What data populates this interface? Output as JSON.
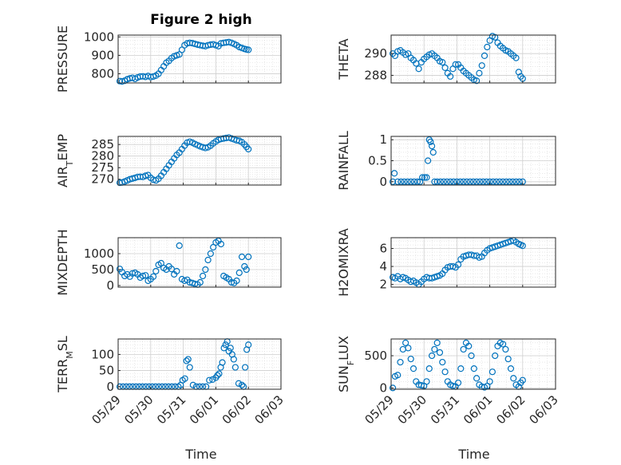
{
  "figure": {
    "title": "Figure 2 high",
    "xlabel_left": "Time",
    "xlabel_right": "Time",
    "x_tick_labels": [
      "05/29",
      "05/30",
      "05/31",
      "06/01",
      "06/02",
      "06/03"
    ],
    "marker_color": "#0072BD",
    "grid_color": "#d9d9d9"
  },
  "chart_data": [
    {
      "type": "scatter",
      "ylabel": "PRESSURE",
      "ylim": [
        750,
        1010
      ],
      "yticks": [
        800,
        900,
        1000
      ],
      "ytick_labels": [
        "800",
        "900",
        "1000"
      ],
      "x": [
        0.05,
        0.12,
        0.2,
        0.28,
        0.36,
        0.44,
        0.52,
        0.6,
        0.68,
        0.76,
        0.84,
        0.92,
        1.0,
        1.08,
        1.16,
        1.24,
        1.32,
        1.4,
        1.48,
        1.56,
        1.64,
        1.72,
        1.8,
        1.88,
        1.96,
        2.04,
        2.12,
        2.2,
        2.28,
        2.36,
        2.44,
        2.52,
        2.6,
        2.68,
        2.76,
        2.84,
        2.92,
        3.0,
        3.08,
        3.16,
        3.24,
        3.32,
        3.4,
        3.48,
        3.56,
        3.64,
        3.72,
        3.8,
        3.88,
        3.94,
        4.0
      ],
      "y": [
        760,
        758,
        762,
        770,
        775,
        778,
        772,
        780,
        785,
        786,
        783,
        788,
        782,
        785,
        790,
        800,
        820,
        840,
        860,
        870,
        885,
        895,
        900,
        905,
        930,
        955,
        965,
        968,
        966,
        962,
        958,
        955,
        952,
        950,
        955,
        958,
        960,
        955,
        950,
        965,
        968,
        970,
        972,
        968,
        962,
        955,
        945,
        940,
        935,
        932,
        930
      ]
    },
    {
      "type": "scatter",
      "ylabel": "THETA",
      "ylim": [
        287.3,
        291.7
      ],
      "yticks": [
        288,
        290
      ],
      "ytick_labels": [
        "288",
        "290"
      ],
      "x": [
        0.05,
        0.12,
        0.2,
        0.28,
        0.36,
        0.44,
        0.52,
        0.6,
        0.68,
        0.76,
        0.84,
        0.92,
        1.0,
        1.08,
        1.16,
        1.24,
        1.32,
        1.4,
        1.48,
        1.56,
        1.64,
        1.72,
        1.8,
        1.88,
        1.96,
        2.04,
        2.12,
        2.2,
        2.28,
        2.36,
        2.44,
        2.52,
        2.6,
        2.68,
        2.76,
        2.84,
        2.92,
        3.0,
        3.08,
        3.16,
        3.24,
        3.32,
        3.4,
        3.48,
        3.56,
        3.64,
        3.72,
        3.8,
        3.88,
        3.94,
        4.0
      ],
      "y": [
        290,
        289.8,
        290.2,
        290.3,
        290.1,
        289.9,
        290,
        289.6,
        289.4,
        289.1,
        288.6,
        289.2,
        289.5,
        289.7,
        289.9,
        290,
        289.8,
        289.6,
        289.3,
        289.2,
        288.7,
        288.2,
        287.9,
        288.6,
        289.0,
        289.0,
        288.7,
        288.4,
        288.2,
        288.0,
        287.8,
        287.6,
        287.5,
        288.2,
        288.9,
        289.8,
        290.6,
        291.2,
        291.6,
        291.5,
        291.0,
        290.7,
        290.5,
        290.3,
        290.2,
        290.0,
        289.8,
        289.6,
        288.3,
        287.9,
        287.7
      ]
    },
    {
      "type": "scatter",
      "ylabel": "AIR_TEMP",
      "ylim": [
        267.5,
        288.5
      ],
      "yticks": [
        270,
        275,
        280,
        285
      ],
      "ytick_labels": [
        "270",
        "275",
        "280",
        "285"
      ],
      "x": [
        0.05,
        0.12,
        0.2,
        0.28,
        0.36,
        0.44,
        0.52,
        0.6,
        0.68,
        0.76,
        0.84,
        0.92,
        1.0,
        1.08,
        1.16,
        1.24,
        1.32,
        1.4,
        1.48,
        1.56,
        1.64,
        1.72,
        1.8,
        1.88,
        1.96,
        2.04,
        2.12,
        2.2,
        2.28,
        2.36,
        2.44,
        2.52,
        2.6,
        2.68,
        2.76,
        2.84,
        2.92,
        3.0,
        3.08,
        3.16,
        3.24,
        3.32,
        3.4,
        3.48,
        3.56,
        3.64,
        3.72,
        3.8,
        3.88,
        3.94,
        4.0
      ],
      "y": [
        268.5,
        268.6,
        269,
        269.5,
        270,
        270.3,
        270.6,
        271,
        271.1,
        271,
        271.5,
        271.8,
        270.6,
        269.8,
        269.5,
        270.2,
        271.5,
        273,
        274.5,
        276,
        277.5,
        279,
        280.5,
        281.5,
        283,
        284.5,
        285.8,
        286.2,
        285.8,
        285.2,
        284.7,
        284.2,
        283.8,
        283.5,
        283.8,
        284.5,
        285.5,
        286.3,
        287,
        287.4,
        287.6,
        287.8,
        288,
        287.6,
        287.2,
        286.8,
        286.6,
        286,
        285,
        284,
        283
      ]
    },
    {
      "type": "scatter",
      "ylabel": "RAINFALL",
      "ylim": [
        -0.08,
        1.08
      ],
      "yticks": [
        0,
        0.5,
        1
      ],
      "ytick_labels": [
        "0",
        "0.5",
        "1"
      ],
      "x": [
        0.05,
        0.1,
        0.2,
        0.3,
        0.4,
        0.5,
        0.6,
        0.7,
        0.8,
        0.88,
        0.95,
        1.02,
        1.08,
        1.12,
        1.16,
        1.2,
        1.24,
        1.28,
        1.32,
        1.4,
        1.5,
        1.6,
        1.7,
        1.8,
        1.9,
        2.0,
        2.1,
        2.2,
        2.3,
        2.4,
        2.5,
        2.6,
        2.7,
        2.8,
        2.9,
        3.0,
        3.1,
        3.2,
        3.3,
        3.4,
        3.5,
        3.6,
        3.7,
        3.8,
        3.9,
        4.0
      ],
      "y": [
        0,
        0.2,
        0,
        0,
        0,
        0,
        0,
        0,
        0,
        0,
        0.1,
        0.1,
        0.1,
        0.5,
        1.0,
        0.95,
        0.85,
        0.7,
        0,
        0,
        0,
        0,
        0,
        0,
        0,
        0,
        0,
        0,
        0,
        0,
        0,
        0,
        0,
        0,
        0,
        0,
        0,
        0,
        0,
        0,
        0,
        0,
        0,
        0,
        0,
        0
      ]
    },
    {
      "type": "scatter",
      "ylabel": "MIXDEPTH",
      "ylim": [
        -50,
        1500
      ],
      "yticks": [
        0,
        500,
        1000
      ],
      "ytick_labels": [
        "0",
        "500",
        "1000"
      ],
      "x": [
        0.05,
        0.12,
        0.2,
        0.28,
        0.36,
        0.44,
        0.52,
        0.6,
        0.68,
        0.76,
        0.84,
        0.92,
        1.0,
        1.08,
        1.16,
        1.24,
        1.32,
        1.4,
        1.48,
        1.56,
        1.64,
        1.72,
        1.8,
        1.88,
        1.96,
        2.04,
        2.12,
        2.2,
        2.28,
        2.36,
        2.44,
        2.52,
        2.6,
        2.68,
        2.76,
        2.84,
        2.92,
        3.0,
        3.08,
        3.16,
        3.24,
        3.32,
        3.4,
        3.48,
        3.56,
        3.64,
        3.72,
        3.8,
        3.88,
        3.94,
        4.0
      ],
      "y": [
        520,
        420,
        300,
        350,
        280,
        380,
        400,
        350,
        250,
        300,
        320,
        150,
        200,
        280,
        450,
        650,
        700,
        550,
        500,
        600,
        520,
        350,
        450,
        1250,
        200,
        150,
        180,
        100,
        80,
        50,
        30,
        100,
        300,
        500,
        800,
        1000,
        1200,
        1350,
        1400,
        1300,
        300,
        250,
        200,
        100,
        80,
        150,
        400,
        900,
        600,
        500,
        900
      ]
    },
    {
      "type": "scatter",
      "ylabel": "H2OMIXRA",
      "ylim": [
        1.7,
        7.2
      ],
      "yticks": [
        2,
        4,
        6
      ],
      "ytick_labels": [
        "2",
        "4",
        "6"
      ],
      "x": [
        0.05,
        0.12,
        0.2,
        0.28,
        0.36,
        0.44,
        0.52,
        0.6,
        0.68,
        0.76,
        0.84,
        0.92,
        1.0,
        1.08,
        1.16,
        1.24,
        1.32,
        1.4,
        1.48,
        1.56,
        1.64,
        1.72,
        1.8,
        1.88,
        1.96,
        2.04,
        2.12,
        2.2,
        2.28,
        2.36,
        2.44,
        2.52,
        2.6,
        2.68,
        2.76,
        2.84,
        2.92,
        3.0,
        3.08,
        3.16,
        3.24,
        3.32,
        3.4,
        3.48,
        3.56,
        3.64,
        3.72,
        3.8,
        3.88,
        3.94,
        4.0
      ],
      "y": [
        2.8,
        2.7,
        2.9,
        2.6,
        2.8,
        2.7,
        2.5,
        2.3,
        2.4,
        2.2,
        2.0,
        2.3,
        2.6,
        2.8,
        2.7,
        2.7,
        2.8,
        2.9,
        3.0,
        3.2,
        3.6,
        3.9,
        4.0,
        4.0,
        3.9,
        4.2,
        4.8,
        5.1,
        5.2,
        5.3,
        5.3,
        5.2,
        5.2,
        5.0,
        5.1,
        5.5,
        5.8,
        6.0,
        6.1,
        6.2,
        6.3,
        6.4,
        6.5,
        6.6,
        6.7,
        6.8,
        6.9,
        6.7,
        6.5,
        6.4,
        6.3
      ]
    },
    {
      "type": "scatter",
      "ylabel": "TERR_MSL",
      "ylim": [
        -8,
        148
      ],
      "yticks": [
        0,
        50,
        100
      ],
      "ytick_labels": [
        "0",
        "50",
        "100"
      ],
      "x": [
        0.05,
        0.15,
        0.25,
        0.35,
        0.45,
        0.55,
        0.65,
        0.75,
        0.85,
        0.95,
        1.05,
        1.15,
        1.25,
        1.35,
        1.45,
        1.55,
        1.65,
        1.75,
        1.85,
        1.92,
        1.98,
        2.05,
        2.1,
        2.15,
        2.2,
        2.3,
        2.4,
        2.5,
        2.6,
        2.7,
        2.8,
        2.9,
        3.0,
        3.05,
        3.1,
        3.15,
        3.2,
        3.25,
        3.3,
        3.35,
        3.4,
        3.45,
        3.5,
        3.55,
        3.6,
        3.7,
        3.8,
        3.85,
        3.9,
        3.95,
        4.0
      ],
      "y": [
        0,
        0,
        0,
        0,
        0,
        0,
        0,
        0,
        0,
        0,
        0,
        0,
        0,
        0,
        0,
        0,
        0,
        0,
        0,
        5,
        20,
        25,
        80,
        85,
        60,
        5,
        0,
        0,
        0,
        0,
        20,
        22,
        28,
        35,
        40,
        60,
        75,
        120,
        130,
        140,
        110,
        120,
        100,
        85,
        60,
        10,
        5,
        0,
        60,
        115,
        130
      ]
    },
    {
      "type": "scatter",
      "ylabel": "SUN_FLUX",
      "ylim": [
        -20,
        760
      ],
      "yticks": [
        0,
        500
      ],
      "ytick_labels": [
        "0",
        "500"
      ],
      "x": [
        0.05,
        0.12,
        0.2,
        0.28,
        0.36,
        0.44,
        0.52,
        0.6,
        0.68,
        0.76,
        0.84,
        0.92,
        1.0,
        1.08,
        1.16,
        1.24,
        1.32,
        1.4,
        1.48,
        1.56,
        1.64,
        1.72,
        1.8,
        1.88,
        1.96,
        2.04,
        2.12,
        2.2,
        2.28,
        2.36,
        2.44,
        2.52,
        2.6,
        2.68,
        2.76,
        2.84,
        2.92,
        3.0,
        3.08,
        3.16,
        3.24,
        3.32,
        3.4,
        3.48,
        3.56,
        3.64,
        3.72,
        3.8,
        3.88,
        3.94,
        4.0
      ],
      "y": [
        0,
        180,
        200,
        400,
        600,
        700,
        620,
        450,
        300,
        100,
        50,
        40,
        30,
        100,
        300,
        500,
        600,
        700,
        550,
        400,
        250,
        100,
        50,
        30,
        20,
        80,
        300,
        600,
        700,
        650,
        500,
        300,
        150,
        50,
        20,
        10,
        30,
        100,
        250,
        500,
        650,
        700,
        680,
        600,
        450,
        300,
        150,
        50,
        20,
        80,
        120
      ]
    }
  ]
}
